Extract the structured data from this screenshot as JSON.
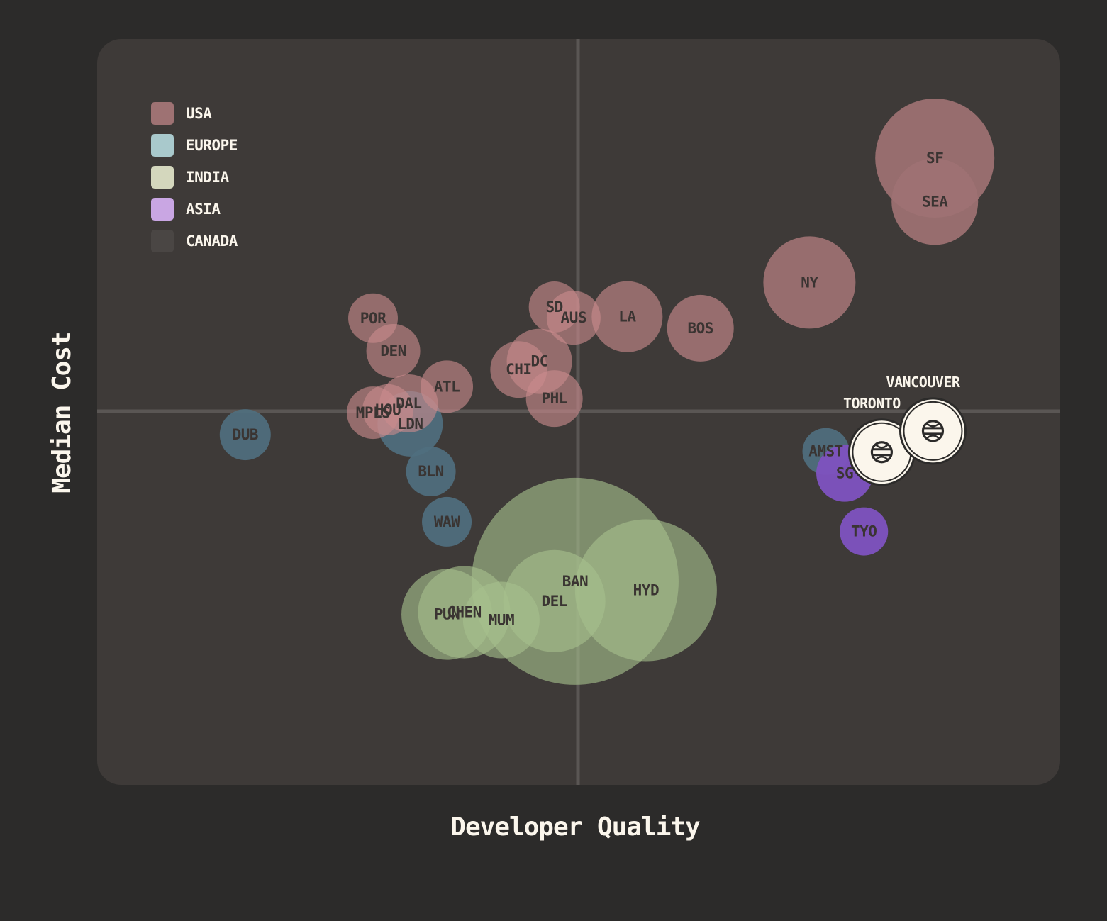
{
  "chart_data": {
    "type": "scatter",
    "title": "",
    "xlabel": "Developer Quality",
    "ylabel": "Median Cost",
    "xlim": [
      -100,
      100
    ],
    "ylim": [
      -100,
      100
    ],
    "grid": false,
    "legend_position": "top-left",
    "colors": {
      "background": "#2c2b2a",
      "panel": "#3e3a38",
      "crosshair": "#5a5654",
      "USA": "#9e7273",
      "USA_overlap": "#c98a8c",
      "EUROPE": "#4f6f7f",
      "INDIA": "#7e8a6a",
      "INDIA_overlap": "#a6c08c",
      "ASIA": "#7e52c0",
      "CANADA": "#fbf6ec"
    },
    "legend": [
      {
        "label": "USA",
        "color": "#9e7273"
      },
      {
        "label": "EUROPE",
        "color": "#a9c9cc"
      },
      {
        "label": "INDIA",
        "color": "#d4d7bd"
      },
      {
        "label": "ASIA",
        "color": "#c9a6e3"
      },
      {
        "label": "CANADA",
        "color": "#4a4644"
      }
    ],
    "series": [
      {
        "name": "USA",
        "points": [
          {
            "label": "SF",
            "x": 74.0,
            "y": 68.0,
            "size": 84
          },
          {
            "label": "SEA",
            "x": 74.0,
            "y": 56.3,
            "size": 61
          },
          {
            "label": "NY",
            "x": 48.0,
            "y": 34.6,
            "size": 65
          },
          {
            "label": "BOS",
            "x": 25.4,
            "y": 22.3,
            "size": 47
          },
          {
            "label": "LA",
            "x": 10.2,
            "y": 25.4,
            "size": 50
          },
          {
            "label": "AUS",
            "x": -0.9,
            "y": 25.1,
            "size": 38
          },
          {
            "label": "SD",
            "x": -4.9,
            "y": 28.0,
            "size": 36
          },
          {
            "label": "DC",
            "x": -8.0,
            "y": 13.4,
            "size": 46
          },
          {
            "label": "CHI",
            "x": -12.3,
            "y": 11.2,
            "size": 40
          },
          {
            "label": "PHL",
            "x": -4.9,
            "y": 3.4,
            "size": 40
          },
          {
            "label": "POR",
            "x": -42.5,
            "y": 25.0,
            "size": 35
          },
          {
            "label": "DEN",
            "x": -38.3,
            "y": 16.2,
            "size": 38
          },
          {
            "label": "ATL",
            "x": -27.2,
            "y": 6.6,
            "size": 37
          },
          {
            "label": "DAL",
            "x": -35.1,
            "y": 2.1,
            "size": 41
          },
          {
            "label": "HOU",
            "x": -39.4,
            "y": 0.4,
            "size": 36
          },
          {
            "label": "MPLS",
            "x": -42.5,
            "y": -0.4,
            "size": 37
          }
        ]
      },
      {
        "name": "EUROPE",
        "points": [
          {
            "label": "DUB",
            "x": -69.0,
            "y": -6.3,
            "size": 36
          },
          {
            "label": "LDN",
            "x": -34.8,
            "y": -3.4,
            "size": 46
          },
          {
            "label": "BLN",
            "x": -30.5,
            "y": -16.2,
            "size": 35
          },
          {
            "label": "WAW",
            "x": -27.2,
            "y": -29.7,
            "size": 35
          },
          {
            "label": "AMST",
            "x": 51.4,
            "y": -10.8,
            "size": 33
          }
        ]
      },
      {
        "name": "INDIA",
        "points": [
          {
            "label": "BAN",
            "x": -0.6,
            "y": -45.7,
            "size": 146
          },
          {
            "label": "HYD",
            "x": 14.1,
            "y": -48.1,
            "size": 100
          },
          {
            "label": "DEL",
            "x": -4.9,
            "y": -51.0,
            "size": 72
          },
          {
            "label": "CHEN",
            "x": -23.6,
            "y": -54.0,
            "size": 65
          },
          {
            "label": "PUN",
            "x": -27.2,
            "y": -54.6,
            "size": 64
          },
          {
            "label": "MUM",
            "x": -15.9,
            "y": -56.1,
            "size": 54
          }
        ]
      },
      {
        "name": "ASIA",
        "points": [
          {
            "label": "SG",
            "x": 55.3,
            "y": -16.7,
            "size": 40
          },
          {
            "label": "TYO",
            "x": 59.3,
            "y": -32.3,
            "size": 34
          }
        ]
      },
      {
        "name": "CANADA",
        "points": [
          {
            "label": "TORONTO",
            "x": 63.0,
            "y": -11.0,
            "size": 46
          },
          {
            "label": "VANCOUVER",
            "x": 73.6,
            "y": -5.3,
            "size": 46
          }
        ]
      }
    ]
  },
  "canada_icon": "globe-icon"
}
